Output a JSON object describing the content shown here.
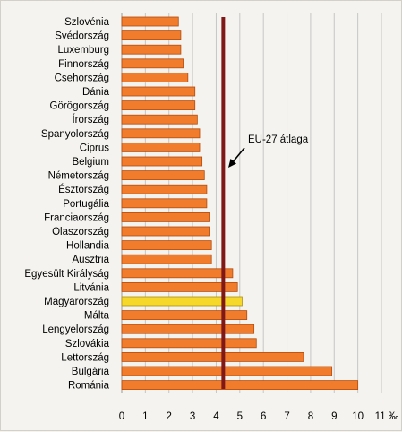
{
  "chart_data": {
    "type": "bar",
    "orientation": "horizontal",
    "categories": [
      "Szlovénia",
      "Svédország",
      "Luxemburg",
      "Finnország",
      "Csehország",
      "Dánia",
      "Görögország",
      "Írország",
      "Spanyolország",
      "Ciprus",
      "Belgium",
      "Németország",
      "Észtország",
      "Portugália",
      "Franciaország",
      "Olaszország",
      "Hollandia",
      "Ausztria",
      "Egyesült Királyság",
      "Litvánia",
      "Magyarország",
      "Málta",
      "Lengyelország",
      "Szlovákia",
      "Lettország",
      "Bulgária",
      "Románia"
    ],
    "values": [
      2.4,
      2.5,
      2.5,
      2.6,
      2.8,
      3.1,
      3.1,
      3.2,
      3.3,
      3.3,
      3.4,
      3.5,
      3.6,
      3.6,
      3.7,
      3.7,
      3.8,
      3.8,
      4.7,
      4.9,
      5.1,
      5.3,
      5.6,
      5.7,
      7.7,
      8.9,
      10.0
    ],
    "highlight_category": "Magyarország",
    "xlim": [
      0,
      11
    ],
    "xticks": [
      "0",
      "1",
      "2",
      "3",
      "4",
      "5",
      "6",
      "7",
      "8",
      "9",
      "10",
      "11 ‰"
    ],
    "grid": "vertical",
    "reference_line": {
      "value": 4.3,
      "label": "EU-27 átlaga"
    },
    "colors": {
      "bar": "#f07c2c",
      "bar_border": "#b44c0e",
      "highlight": "#f6d82a",
      "highlight_border": "#b09010",
      "reference_line": "#801818",
      "grid": "#c6c6c6",
      "axis": "#9a9a9a"
    }
  }
}
